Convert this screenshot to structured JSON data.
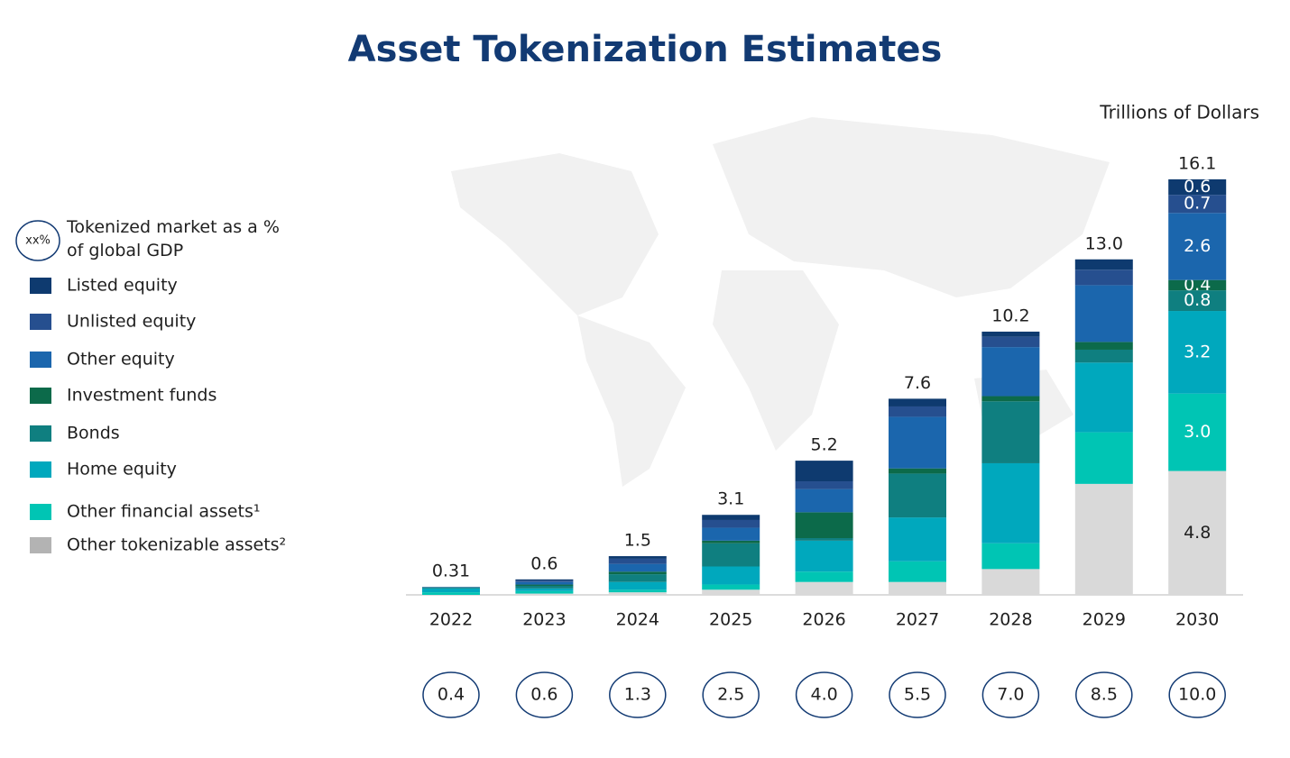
{
  "chart_data": {
    "type": "stacked-bar",
    "title": "Asset Tokenization Estimates",
    "subtitle": "Trillions of Dollars",
    "gdp_legend": {
      "marker": "xx%",
      "text": "Tokenized market as a % of global GDP"
    },
    "categories": [
      "2022",
      "2023",
      "2024",
      "2025",
      "2026",
      "2027",
      "2028",
      "2029",
      "2030"
    ],
    "totals": [
      0.31,
      0.6,
      1.5,
      3.1,
      5.2,
      7.6,
      10.2,
      13.0,
      16.1
    ],
    "total_labels": [
      "0.31",
      "0.6",
      "1.5",
      "3.1",
      "5.2",
      "7.6",
      "10.2",
      "13.0",
      "16.1"
    ],
    "gdp_labels": [
      "0.4",
      "0.6",
      "1.3",
      "2.5",
      "4.0",
      "5.5",
      "7.0",
      "8.5",
      "10.0"
    ],
    "series": [
      {
        "name": "Listed equity",
        "color": "#0e3a6f",
        "values": [
          0,
          0.05,
          0.1,
          0.2,
          0.8,
          0.3,
          0.2,
          0.4,
          0.6
        ],
        "value_labels": [
          null,
          null,
          null,
          null,
          null,
          null,
          null,
          null,
          "0.6"
        ]
      },
      {
        "name": "Unlisted equity",
        "color": "#264f8f",
        "values": [
          0,
          0.05,
          0.2,
          0.3,
          0.3,
          0.4,
          0.4,
          0.6,
          0.7
        ],
        "value_labels": [
          null,
          null,
          null,
          null,
          null,
          null,
          null,
          null,
          "0.7"
        ]
      },
      {
        "name": "Other equity",
        "color": "#1b66ad",
        "values": [
          0.02,
          0.1,
          0.3,
          0.5,
          0.9,
          2.0,
          1.9,
          2.2,
          2.6
        ],
        "value_labels": [
          null,
          null,
          null,
          null,
          null,
          null,
          null,
          null,
          "2.6"
        ]
      },
      {
        "name": "Investment funds",
        "color": "#0c6a4a",
        "values": [
          0.01,
          0.05,
          0.1,
          0.1,
          1.0,
          0.2,
          0.2,
          0.3,
          0.4
        ],
        "value_labels": [
          null,
          null,
          null,
          null,
          null,
          null,
          null,
          null,
          "0.4"
        ]
      },
      {
        "name": "Bonds",
        "color": "#0f7f80",
        "values": [
          0.03,
          0.1,
          0.3,
          0.9,
          0.1,
          1.7,
          2.4,
          0.5,
          0.8
        ],
        "value_labels": [
          null,
          null,
          null,
          null,
          null,
          null,
          null,
          null,
          "0.8"
        ]
      },
      {
        "name": "Home equity",
        "color": "#00a8bd",
        "values": [
          0.15,
          0.1,
          0.3,
          0.7,
          1.2,
          1.7,
          3.1,
          2.7,
          3.2
        ],
        "value_labels": [
          null,
          null,
          null,
          null,
          null,
          null,
          null,
          null,
          "3.2"
        ]
      },
      {
        "name": "Other financial assets¹",
        "color": "#00c5b4",
        "values": [
          0.1,
          0.1,
          0.1,
          0.2,
          0.4,
          0.8,
          1.0,
          2.0,
          3.0
        ],
        "value_labels": [
          null,
          null,
          null,
          null,
          null,
          null,
          null,
          null,
          "3.0"
        ]
      },
      {
        "name": "Other tokenizable assets²",
        "color": "#d9d9d9",
        "legend_color": "#b3b3b3",
        "values": [
          0,
          0.05,
          0.1,
          0.2,
          0.5,
          0.5,
          1.0,
          4.3,
          4.8
        ],
        "value_labels": [
          null,
          null,
          null,
          null,
          null,
          null,
          null,
          null,
          "4.8"
        ]
      }
    ]
  }
}
